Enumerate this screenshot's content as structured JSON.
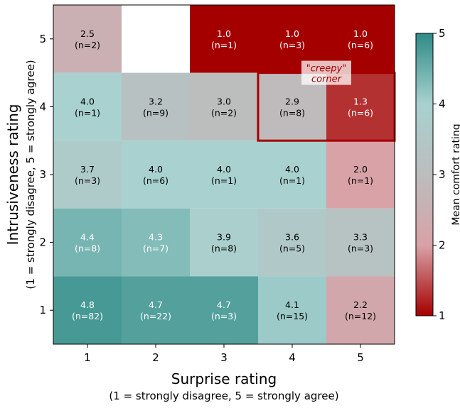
{
  "chart_data": {
    "type": "heatmap",
    "xlabel": "Surprise rating",
    "xlabel_sub": "(1 = strongly disagree, 5 = strongly agree)",
    "ylabel": "Intrusiveness rating",
    "ylabel_sub": "(1 = strongly disagree, 5 = strongly agree)",
    "x_ticks": [
      "1",
      "2",
      "3",
      "4",
      "5"
    ],
    "y_ticks": [
      "1",
      "2",
      "3",
      "4",
      "5"
    ],
    "colorbar": {
      "label": "Mean comfort rating",
      "min": 1,
      "max": 5,
      "ticks": [
        "1",
        "2",
        "3",
        "4",
        "5"
      ],
      "colors": [
        "#a50000",
        "#d8a2a7",
        "#bcbdbd",
        "#a8d1cf",
        "#2e8b87"
      ]
    },
    "cells": [
      {
        "surprise": 1,
        "intrusiveness": 5,
        "mean": 2.5,
        "value": "2.5",
        "n": "(n=2)"
      },
      {
        "surprise": 2,
        "intrusiveness": 5,
        "mean": null,
        "value": "",
        "n": ""
      },
      {
        "surprise": 3,
        "intrusiveness": 5,
        "mean": 1.0,
        "value": "1.0",
        "n": "(n=1)"
      },
      {
        "surprise": 4,
        "intrusiveness": 5,
        "mean": 1.0,
        "value": "1.0",
        "n": "(n=3)"
      },
      {
        "surprise": 5,
        "intrusiveness": 5,
        "mean": 1.0,
        "value": "1.0",
        "n": "(n=6)"
      },
      {
        "surprise": 1,
        "intrusiveness": 4,
        "mean": 4.0,
        "value": "4.0",
        "n": "(n=1)"
      },
      {
        "surprise": 2,
        "intrusiveness": 4,
        "mean": 3.2,
        "value": "3.2",
        "n": "(n=9)"
      },
      {
        "surprise": 3,
        "intrusiveness": 4,
        "mean": 3.0,
        "value": "3.0",
        "n": "(n=2)"
      },
      {
        "surprise": 4,
        "intrusiveness": 4,
        "mean": 2.9,
        "value": "2.9",
        "n": "(n=8)"
      },
      {
        "surprise": 5,
        "intrusiveness": 4,
        "mean": 1.3,
        "value": "1.3",
        "n": "(n=6)"
      },
      {
        "surprise": 1,
        "intrusiveness": 3,
        "mean": 3.7,
        "value": "3.7",
        "n": "(n=3)"
      },
      {
        "surprise": 2,
        "intrusiveness": 3,
        "mean": 4.0,
        "value": "4.0",
        "n": "(n=6)"
      },
      {
        "surprise": 3,
        "intrusiveness": 3,
        "mean": 4.0,
        "value": "4.0",
        "n": "(n=1)"
      },
      {
        "surprise": 4,
        "intrusiveness": 3,
        "mean": 4.0,
        "value": "4.0",
        "n": "(n=1)"
      },
      {
        "surprise": 5,
        "intrusiveness": 3,
        "mean": 2.0,
        "value": "2.0",
        "n": "(n=1)"
      },
      {
        "surprise": 1,
        "intrusiveness": 2,
        "mean": 4.4,
        "value": "4.4",
        "n": "(n=8)"
      },
      {
        "surprise": 2,
        "intrusiveness": 2,
        "mean": 4.3,
        "value": "4.3",
        "n": "(n=7)"
      },
      {
        "surprise": 3,
        "intrusiveness": 2,
        "mean": 3.9,
        "value": "3.9",
        "n": "(n=8)"
      },
      {
        "surprise": 4,
        "intrusiveness": 2,
        "mean": 3.6,
        "value": "3.6",
        "n": "(n=5)"
      },
      {
        "surprise": 5,
        "intrusiveness": 2,
        "mean": 3.3,
        "value": "3.3",
        "n": "(n=3)"
      },
      {
        "surprise": 1,
        "intrusiveness": 1,
        "mean": 4.8,
        "value": "4.8",
        "n": "(n=82)"
      },
      {
        "surprise": 2,
        "intrusiveness": 1,
        "mean": 4.7,
        "value": "4.7",
        "n": "(n=22)"
      },
      {
        "surprise": 3,
        "intrusiveness": 1,
        "mean": 4.7,
        "value": "4.7",
        "n": "(n=3)"
      },
      {
        "surprise": 4,
        "intrusiveness": 1,
        "mean": 4.1,
        "value": "4.1",
        "n": "(n=15)"
      },
      {
        "surprise": 5,
        "intrusiveness": 1,
        "mean": 2.2,
        "value": "2.2",
        "n": "(n=12)"
      }
    ],
    "annotation": {
      "text_line1": "\"creepy\"",
      "text_line2": "corner",
      "highlight_surprise": [
        4,
        5
      ],
      "highlight_intrusiveness": [
        4,
        4
      ],
      "color": "#a50000"
    }
  }
}
